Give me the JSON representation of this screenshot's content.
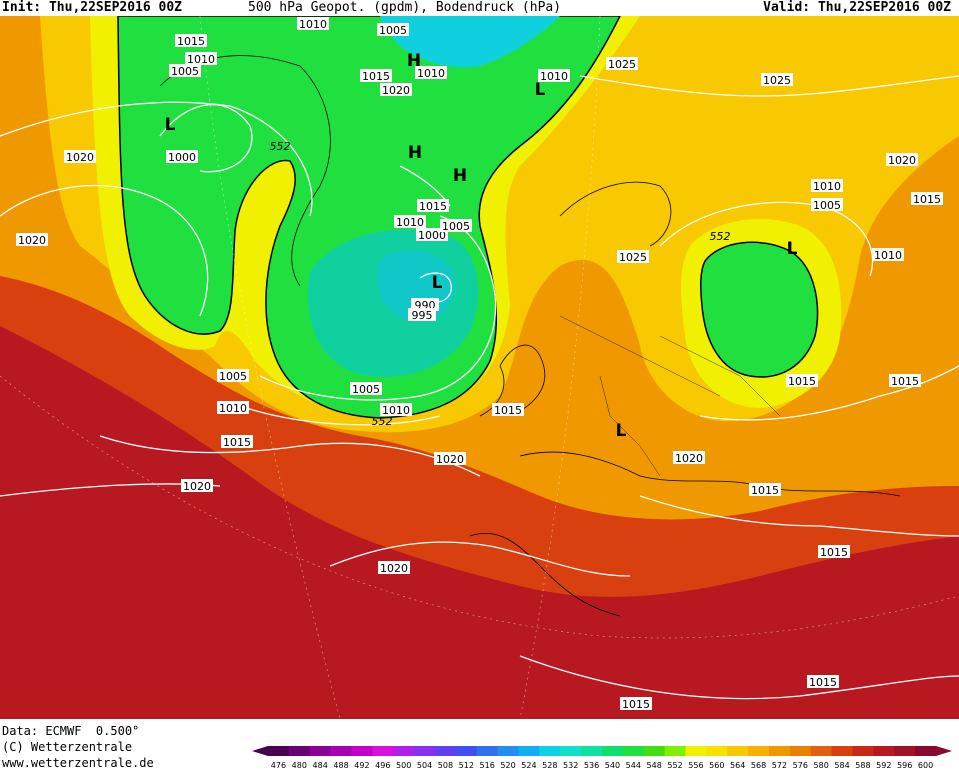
{
  "header": {
    "init": "Init: Thu,22SEP2016 00Z",
    "title": "500 hPa Geopot. (gpdm), Bodendruck (hPa)",
    "valid": "Valid: Thu,22SEP2016 00Z"
  },
  "footer": {
    "data_source": "Data: ECMWF  0.500°",
    "copyright": "(C) Wetterzentrale",
    "website": "www.wetterzentrale.de"
  },
  "legend": {
    "levels": [
      "476",
      "480",
      "484",
      "488",
      "492",
      "496",
      "500",
      "504",
      "508",
      "512",
      "516",
      "520",
      "524",
      "528",
      "532",
      "536",
      "540",
      "544",
      "548",
      "552",
      "556",
      "560",
      "564",
      "568",
      "572",
      "576",
      "580",
      "584",
      "588",
      "592",
      "596",
      "600"
    ],
    "colors": [
      "#4a0050",
      "#6a0078",
      "#8a0098",
      "#a800b4",
      "#c400cc",
      "#d810e0",
      "#b020e8",
      "#8830f0",
      "#6040f0",
      "#4050f0",
      "#3070f0",
      "#2090f0",
      "#10b0f0",
      "#10d0e8",
      "#10e0c8",
      "#10e0a0",
      "#10e070",
      "#20e040",
      "#40e010",
      "#80f000",
      "#f0f000",
      "#f8e000",
      "#f8c800",
      "#f8b000",
      "#f09800",
      "#e88000",
      "#e06010",
      "#d84010",
      "#c82818",
      "#b81820",
      "#a01028",
      "#880830"
    ]
  },
  "map": {
    "colors": {
      "green": "#20e040",
      "cyan": "#10d0c0",
      "yellow": "#f0f000",
      "orange": "#f09800",
      "red": "#d84010",
      "darkred": "#b81820"
    },
    "pressure_labels": [
      {
        "text": "1010"
      },
      {
        "text": "1005"
      },
      {
        "text": "1015"
      },
      {
        "text": "1010"
      },
      {
        "text": "1005"
      },
      {
        "text": "1015"
      },
      {
        "text": "1010"
      },
      {
        "text": "1020"
      },
      {
        "text": "1010"
      },
      {
        "text": "1025"
      },
      {
        "text": "1025"
      },
      {
        "text": "1020"
      },
      {
        "text": "1000"
      },
      {
        "text": "1020"
      },
      {
        "text": "1020"
      },
      {
        "text": "1010"
      },
      {
        "text": "1015"
      },
      {
        "text": "1005"
      },
      {
        "text": "1000"
      },
      {
        "text": "1025"
      },
      {
        "text": "1010"
      },
      {
        "text": "1005"
      },
      {
        "text": "1015"
      },
      {
        "text": "1010"
      },
      {
        "text": "990"
      },
      {
        "text": "995"
      },
      {
        "text": "1005"
      },
      {
        "text": "1010"
      },
      {
        "text": "1005"
      },
      {
        "text": "1010"
      },
      {
        "text": "1015"
      },
      {
        "text": "1020"
      },
      {
        "text": "1015"
      },
      {
        "text": "1015"
      },
      {
        "text": "1015"
      },
      {
        "text": "1020"
      },
      {
        "text": "1015"
      },
      {
        "text": "1020"
      },
      {
        "text": "1020"
      },
      {
        "text": "1015"
      },
      {
        "text": "1015"
      },
      {
        "text": "1015"
      }
    ],
    "geopotential_labels": [
      {
        "text": "552"
      },
      {
        "text": "552"
      },
      {
        "text": "552"
      }
    ],
    "symbols": [
      {
        "text": "L"
      },
      {
        "text": "H"
      },
      {
        "text": "H"
      },
      {
        "text": "H"
      },
      {
        "text": "L"
      },
      {
        "text": "L"
      },
      {
        "text": "L"
      },
      {
        "text": "L"
      }
    ]
  }
}
